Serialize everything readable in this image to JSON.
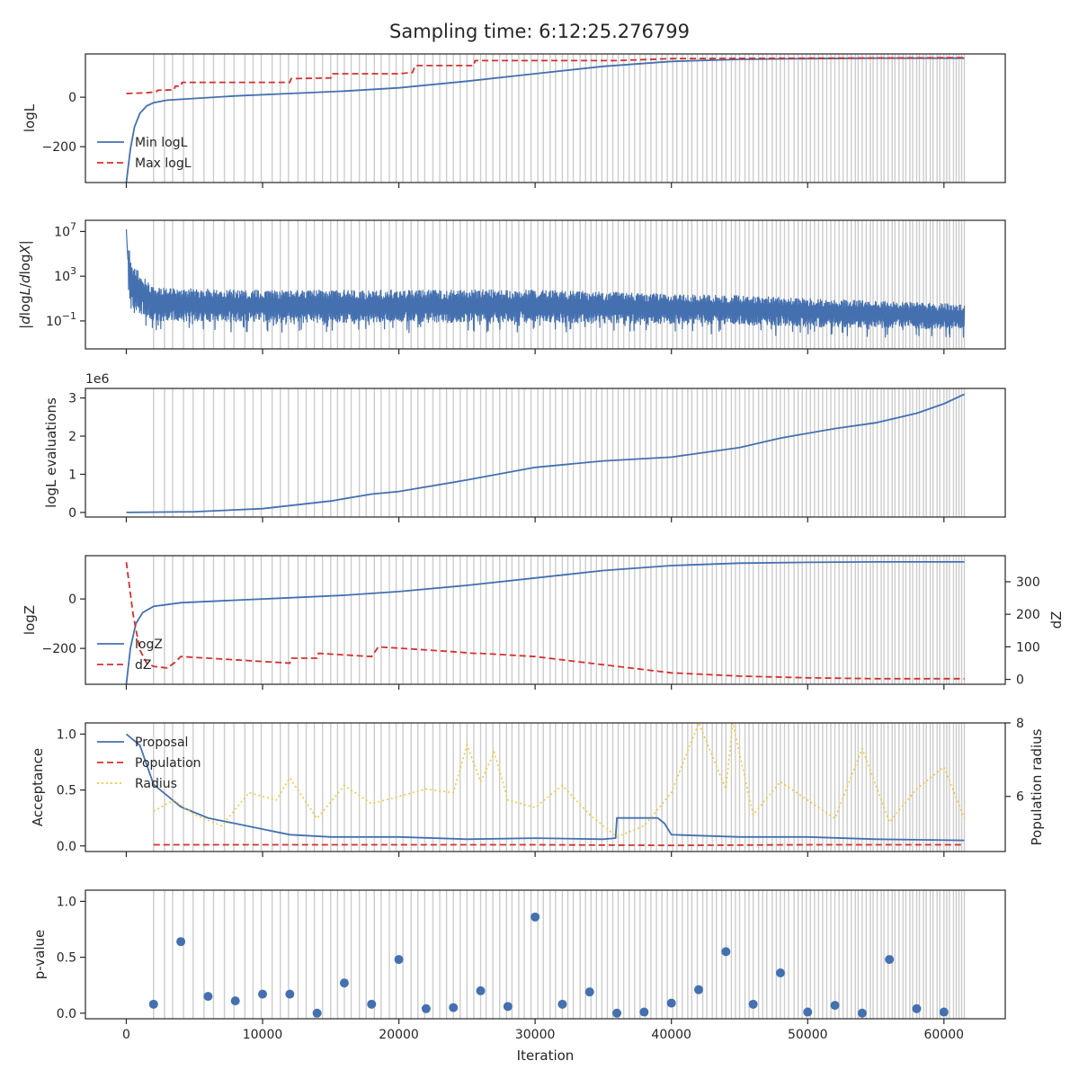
{
  "title": "Sampling time: 6:12:25.276799",
  "colors": {
    "blue": "#4470b0",
    "red": "#d62f2f",
    "yellow": "#f2c83a",
    "grid_line": "#cccccc",
    "axis": "#262626"
  },
  "chart_data": [
    {
      "id": "logl",
      "type": "line",
      "ylabel": "logL",
      "xlim": [
        -3000,
        64500
      ],
      "ylim": [
        -345,
        175
      ],
      "yticks": [
        0,
        -200
      ],
      "ytick_labels": [
        "0",
        "−200"
      ],
      "legend": "center-left",
      "series": [
        {
          "name": "Min logL",
          "style": "solid",
          "color": "#4470b0",
          "points": [
            [
              0,
              -345
            ],
            [
              300,
              -210
            ],
            [
              600,
              -120
            ],
            [
              1000,
              -65
            ],
            [
              1500,
              -35
            ],
            [
              2000,
              -22
            ],
            [
              3000,
              -12
            ],
            [
              5000,
              -5
            ],
            [
              8000,
              5
            ],
            [
              12000,
              15
            ],
            [
              16000,
              25
            ],
            [
              20000,
              38
            ],
            [
              25000,
              65
            ],
            [
              30000,
              95
            ],
            [
              35000,
              125
            ],
            [
              40000,
              145
            ],
            [
              45000,
              153
            ],
            [
              50000,
              156
            ],
            [
              55000,
              158
            ],
            [
              61500,
              158
            ]
          ]
        },
        {
          "name": "Max logL",
          "style": "dashed",
          "color": "#d62f2f",
          "points": [
            [
              0,
              15
            ],
            [
              1500,
              18
            ],
            [
              2200,
              22
            ],
            [
              2300,
              28
            ],
            [
              3500,
              30
            ],
            [
              3600,
              45
            ],
            [
              4000,
              45
            ],
            [
              4100,
              60
            ],
            [
              12000,
              60
            ],
            [
              12100,
              75
            ],
            [
              15000,
              78
            ],
            [
              15100,
              95
            ],
            [
              20000,
              95
            ],
            [
              21000,
              100
            ],
            [
              21200,
              128
            ],
            [
              25500,
              128
            ],
            [
              25600,
              148
            ],
            [
              36000,
              148
            ],
            [
              40000,
              156
            ],
            [
              61500,
              160
            ]
          ]
        }
      ]
    },
    {
      "id": "dlogl",
      "type": "line",
      "ylabel": "|dlogL/dlogX|",
      "yscale": "log",
      "xlim": [
        -3000,
        64500
      ],
      "ylim": [
        -3.5,
        8.0
      ],
      "yticks": [
        7,
        3,
        -1
      ],
      "ytick_labels": [
        "10^7",
        "10^3",
        "10^−1"
      ],
      "series": [
        {
          "name": "",
          "style": "noisy-band",
          "color": "#4470b0",
          "envelope_log10": [
            {
              "x": 0,
              "lo": 2.0,
              "hi": 7.2
            },
            {
              "x": 500,
              "lo": 0.0,
              "hi": 4.0
            },
            {
              "x": 2000,
              "lo": -1.0,
              "hi": 2.0
            },
            {
              "x": 10000,
              "lo": -1.2,
              "hi": 1.8
            },
            {
              "x": 30000,
              "lo": -1.2,
              "hi": 1.8
            },
            {
              "x": 45000,
              "lo": -1.4,
              "hi": 1.3
            },
            {
              "x": 61500,
              "lo": -1.8,
              "hi": 0.5
            }
          ]
        }
      ]
    },
    {
      "id": "evals",
      "type": "line",
      "ylabel": "logL evaluations",
      "offset_text": "1e6",
      "xlim": [
        -3000,
        64500
      ],
      "ylim": [
        -0.12,
        3.25
      ],
      "yticks": [
        0,
        1,
        2,
        3
      ],
      "ytick_labels": [
        "0",
        "1",
        "2",
        "3"
      ],
      "series": [
        {
          "name": "",
          "style": "solid",
          "color": "#4470b0",
          "points": [
            [
              0,
              0
            ],
            [
              5000,
              0.02
            ],
            [
              10000,
              0.1
            ],
            [
              15000,
              0.3
            ],
            [
              18000,
              0.48
            ],
            [
              20000,
              0.55
            ],
            [
              25000,
              0.85
            ],
            [
              30000,
              1.18
            ],
            [
              35000,
              1.35
            ],
            [
              40000,
              1.45
            ],
            [
              42000,
              1.55
            ],
            [
              45000,
              1.7
            ],
            [
              48000,
              1.95
            ],
            [
              52000,
              2.2
            ],
            [
              55000,
              2.35
            ],
            [
              58000,
              2.6
            ],
            [
              60000,
              2.85
            ],
            [
              61500,
              3.1
            ]
          ]
        }
      ]
    },
    {
      "id": "logz",
      "type": "line",
      "ylabel": "logZ",
      "ylabel_right": "dZ",
      "xlim": [
        -3000,
        64500
      ],
      "ylim": [
        -345,
        175
      ],
      "ylim_right": [
        -15,
        380
      ],
      "yticks": [
        0,
        -200
      ],
      "ytick_labels": [
        "0",
        "−200"
      ],
      "yticks_right": [
        300,
        200,
        100,
        0
      ],
      "ytick_labels_right": [
        "300",
        "200",
        "100",
        "0"
      ],
      "legend": "center-left",
      "series": [
        {
          "name": "logZ",
          "style": "solid",
          "color": "#4470b0",
          "axis": "left",
          "points": [
            [
              0,
              -345
            ],
            [
              300,
              -200
            ],
            [
              700,
              -100
            ],
            [
              1200,
              -55
            ],
            [
              2000,
              -30
            ],
            [
              4000,
              -15
            ],
            [
              8000,
              -5
            ],
            [
              12000,
              5
            ],
            [
              16000,
              15
            ],
            [
              20000,
              30
            ],
            [
              25000,
              55
            ],
            [
              30000,
              85
            ],
            [
              35000,
              115
            ],
            [
              40000,
              135
            ],
            [
              45000,
              145
            ],
            [
              50000,
              148
            ],
            [
              55000,
              150
            ],
            [
              61500,
              150
            ]
          ]
        },
        {
          "name": "dZ",
          "style": "dashed",
          "color": "#d62f2f",
          "axis": "right",
          "points": [
            [
              0,
              360
            ],
            [
              500,
              200
            ],
            [
              1000,
              90
            ],
            [
              1500,
              50
            ],
            [
              2000,
              40
            ],
            [
              3000,
              35
            ],
            [
              3500,
              50
            ],
            [
              4000,
              70
            ],
            [
              8000,
              60
            ],
            [
              12000,
              50
            ],
            [
              12100,
              65
            ],
            [
              14000,
              65
            ],
            [
              14100,
              80
            ],
            [
              18000,
              70
            ],
            [
              18500,
              100
            ],
            [
              24000,
              85
            ],
            [
              25500,
              80
            ],
            [
              26000,
              80
            ],
            [
              30000,
              70
            ],
            [
              36000,
              40
            ],
            [
              40000,
              20
            ],
            [
              45000,
              10
            ],
            [
              50000,
              5
            ],
            [
              55000,
              2
            ],
            [
              61500,
              2
            ]
          ]
        }
      ]
    },
    {
      "id": "acceptance",
      "type": "line",
      "ylabel": "Acceptance",
      "ylabel_right": "Population radius",
      "xlim": [
        -3000,
        64500
      ],
      "ylim": [
        -0.05,
        1.1
      ],
      "ylim_right": [
        4.5,
        8.0
      ],
      "yticks": [
        1.0,
        0.5,
        0.0
      ],
      "ytick_labels": [
        "1.0",
        "0.5",
        "0.0"
      ],
      "yticks_right": [
        8,
        6
      ],
      "ytick_labels_right": [
        "8",
        "6"
      ],
      "legend": "top-left",
      "series": [
        {
          "name": "Proposal",
          "style": "solid",
          "color": "#4470b0",
          "axis": "left",
          "points": [
            [
              0,
              1.0
            ],
            [
              1000,
              0.9
            ],
            [
              2000,
              0.55
            ],
            [
              3000,
              0.45
            ],
            [
              4000,
              0.35
            ],
            [
              6000,
              0.25
            ],
            [
              8000,
              0.2
            ],
            [
              10000,
              0.15
            ],
            [
              12000,
              0.1
            ],
            [
              15000,
              0.08
            ],
            [
              20000,
              0.08
            ],
            [
              25000,
              0.06
            ],
            [
              30000,
              0.07
            ],
            [
              35000,
              0.06
            ],
            [
              35900,
              0.07
            ],
            [
              36000,
              0.25
            ],
            [
              39000,
              0.25
            ],
            [
              39500,
              0.2
            ],
            [
              40000,
              0.1
            ],
            [
              45000,
              0.08
            ],
            [
              50000,
              0.08
            ],
            [
              55000,
              0.06
            ],
            [
              61500,
              0.05
            ]
          ]
        },
        {
          "name": "Population",
          "style": "dashed",
          "color": "#d62f2f",
          "axis": "left",
          "points": [
            [
              2000,
              0.01
            ],
            [
              10000,
              0.01
            ],
            [
              20000,
              0.01
            ],
            [
              30000,
              0.01
            ],
            [
              40000,
              0.005
            ],
            [
              50000,
              0.01
            ],
            [
              61500,
              0.01
            ]
          ]
        },
        {
          "name": "Radius",
          "style": "dotted",
          "color": "#f2c83a",
          "axis": "right",
          "points": [
            [
              2000,
              5.6
            ],
            [
              3500,
              5.9
            ],
            [
              5000,
              5.5
            ],
            [
              7000,
              5.2
            ],
            [
              9000,
              6.1
            ],
            [
              11000,
              5.9
            ],
            [
              12000,
              6.5
            ],
            [
              14000,
              5.4
            ],
            [
              16000,
              6.3
            ],
            [
              18000,
              5.8
            ],
            [
              20000,
              6.0
            ],
            [
              22000,
              6.2
            ],
            [
              24000,
              6.1
            ],
            [
              25000,
              7.4
            ],
            [
              26000,
              6.4
            ],
            [
              27000,
              7.2
            ],
            [
              28000,
              5.9
            ],
            [
              30000,
              5.7
            ],
            [
              32000,
              6.3
            ],
            [
              34000,
              5.5
            ],
            [
              36000,
              4.9
            ],
            [
              38000,
              5.2
            ],
            [
              40000,
              6.1
            ],
            [
              42000,
              8.0
            ],
            [
              44000,
              6.2
            ],
            [
              44500,
              8.0
            ],
            [
              46000,
              5.5
            ],
            [
              48000,
              6.4
            ],
            [
              50000,
              5.9
            ],
            [
              52000,
              5.4
            ],
            [
              54000,
              7.3
            ],
            [
              56000,
              5.3
            ],
            [
              58000,
              6.2
            ],
            [
              60000,
              6.8
            ],
            [
              61500,
              5.4
            ]
          ]
        }
      ]
    },
    {
      "id": "pvalue",
      "type": "scatter",
      "ylabel": "p-value",
      "xlabel": "Iteration",
      "xlim": [
        -3000,
        64500
      ],
      "ylim": [
        -0.05,
        1.1
      ],
      "yticks": [
        1.0,
        0.5,
        0.0
      ],
      "ytick_labels": [
        "1.0",
        "0.5",
        "0.0"
      ],
      "xticks": [
        0,
        10000,
        20000,
        30000,
        40000,
        50000,
        60000
      ],
      "xtick_labels": [
        "0",
        "10000",
        "20000",
        "30000",
        "40000",
        "50000",
        "60000"
      ],
      "series": [
        {
          "name": "",
          "style": "markers",
          "color": "#4470b0",
          "x": [
            2000,
            4000,
            6000,
            8000,
            10000,
            12000,
            14000,
            16000,
            18000,
            20000,
            22000,
            24000,
            26000,
            28000,
            30000,
            32000,
            34000,
            36000,
            38000,
            40000,
            42000,
            44000,
            46000,
            48000,
            50000,
            52000,
            54000,
            56000,
            58000,
            60000
          ],
          "y": [
            0.08,
            0.64,
            0.15,
            0.11,
            0.17,
            0.17,
            0.0,
            0.27,
            0.08,
            0.48,
            0.04,
            0.05,
            0.2,
            0.06,
            0.86,
            0.08,
            0.19,
            0.0,
            0.01,
            0.09,
            0.21,
            0.55,
            0.08,
            0.36,
            0.01,
            0.07,
            0.0,
            0.48,
            0.04,
            0.01
          ]
        }
      ]
    }
  ],
  "restart_lines": {
    "description": "",
    "x": [
      2000,
      2800,
      3400,
      4200,
      4900,
      5700,
      6400,
      7200,
      7900,
      8700,
      9300,
      9900,
      10700,
      11300,
      11900,
      12600,
      13200,
      13800,
      14400,
      15000,
      15500,
      16000,
      16500,
      17100,
      17600,
      18200,
      18700,
      19300,
      19800,
      20300,
      20900,
      21400,
      21900,
      22500,
      23000,
      23500,
      24000,
      24500,
      25000,
      25500,
      26000,
      26400,
      26900,
      27400,
      27900,
      28300,
      28800,
      29200,
      29700,
      30200,
      30600,
      31100,
      31500,
      32000,
      32400,
      32800,
      33300,
      33700,
      34100,
      34500,
      34900,
      35300,
      35700,
      36100,
      36500,
      36900,
      37300,
      37700,
      38100,
      38500,
      38900,
      39300,
      39700,
      40100,
      40400,
      40800,
      41200,
      41500,
      41900,
      42300,
      42600,
      43000,
      43300,
      43700,
      44000,
      44400,
      44700,
      45000,
      45400,
      45700,
      46000,
      46400,
      46700,
      47000,
      47400,
      47700,
      48000,
      48300,
      48600,
      49000,
      49300,
      49600,
      49900,
      50200,
      50500,
      50800,
      51100,
      51400,
      51700,
      52000,
      52300,
      52600,
      52900,
      53200,
      53500,
      53700,
      54000,
      54300,
      54600,
      54800,
      55100,
      55400,
      55600,
      55900,
      56200,
      56400,
      56700,
      57000,
      57200,
      57500,
      57700,
      58000,
      58200,
      58500,
      58700,
      59000,
      59200,
      59500,
      59700,
      60000,
      60200,
      60400,
      60700,
      60900,
      61100,
      61300,
      61500
    ]
  }
}
